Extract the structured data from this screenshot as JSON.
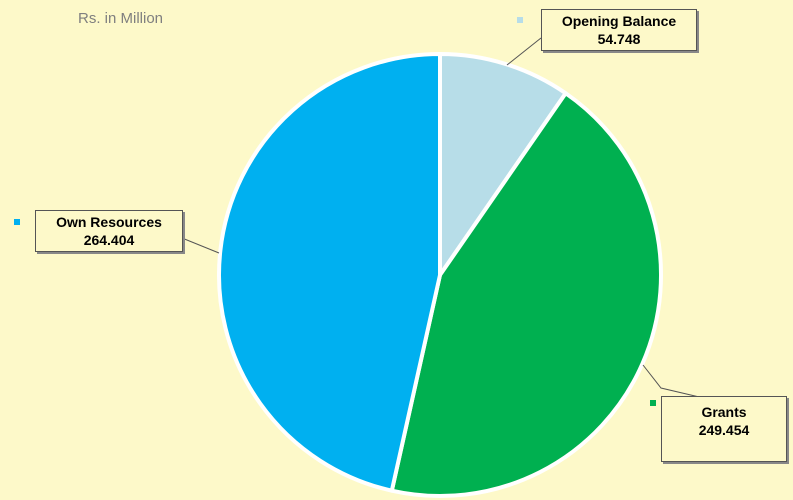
{
  "chart_data": {
    "type": "pie",
    "subtitle": "Rs. in Million",
    "slices": [
      {
        "label": "Opening Balance",
        "value": 54.748,
        "value_text": "54.748",
        "color": "#b7dde8"
      },
      {
        "label": "Grants",
        "value": 249.454,
        "value_text": "249.454",
        "color": "#00b050"
      },
      {
        "label": "Own Resources",
        "value": 264.404,
        "value_text": "264.404",
        "color": "#00b0f0"
      }
    ],
    "start_angle_deg": 0,
    "direction": "clockwise",
    "slice_border_color": "#ffffff",
    "background": "#fdf9c9"
  }
}
